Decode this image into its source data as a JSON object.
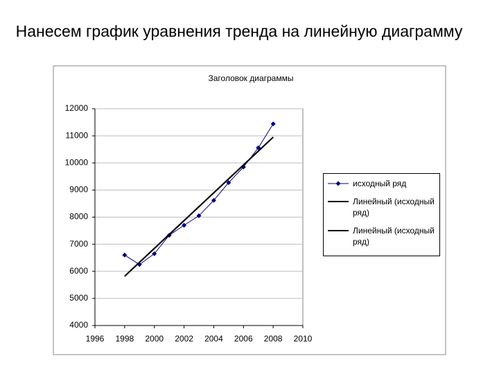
{
  "heading": "Нанесем график уравнения тренда на линейную диаграмму",
  "chart_data": {
    "type": "line",
    "title": "Заголовок диаграммы",
    "xlim": [
      1996,
      2010
    ],
    "xticks": [
      1996,
      1998,
      2000,
      2002,
      2004,
      2006,
      2008,
      2010
    ],
    "ylim": [
      4000,
      12000
    ],
    "yticks": [
      4000,
      5000,
      6000,
      7000,
      8000,
      9000,
      10000,
      11000,
      12000
    ],
    "grid": true,
    "legend": "right",
    "series": [
      {
        "name": "исходный ряд",
        "color": "#000080",
        "marker": "diamond",
        "x": [
          1998,
          1999,
          2000,
          2001,
          2002,
          2003,
          2004,
          2005,
          2006,
          2007,
          2008
        ],
        "values": [
          6600,
          6250,
          6650,
          7330,
          7700,
          8050,
          8620,
          9270,
          9850,
          10560,
          11440
        ]
      },
      {
        "name": "Линейный (исходный ряд)",
        "color": "#000000",
        "x": [
          1998,
          2008
        ],
        "values": [
          5820,
          10950
        ]
      },
      {
        "name": "Линейный (исходный ряд)",
        "color": "#000000",
        "x": [
          1998,
          2008
        ],
        "values": [
          5820,
          10950
        ]
      }
    ]
  }
}
